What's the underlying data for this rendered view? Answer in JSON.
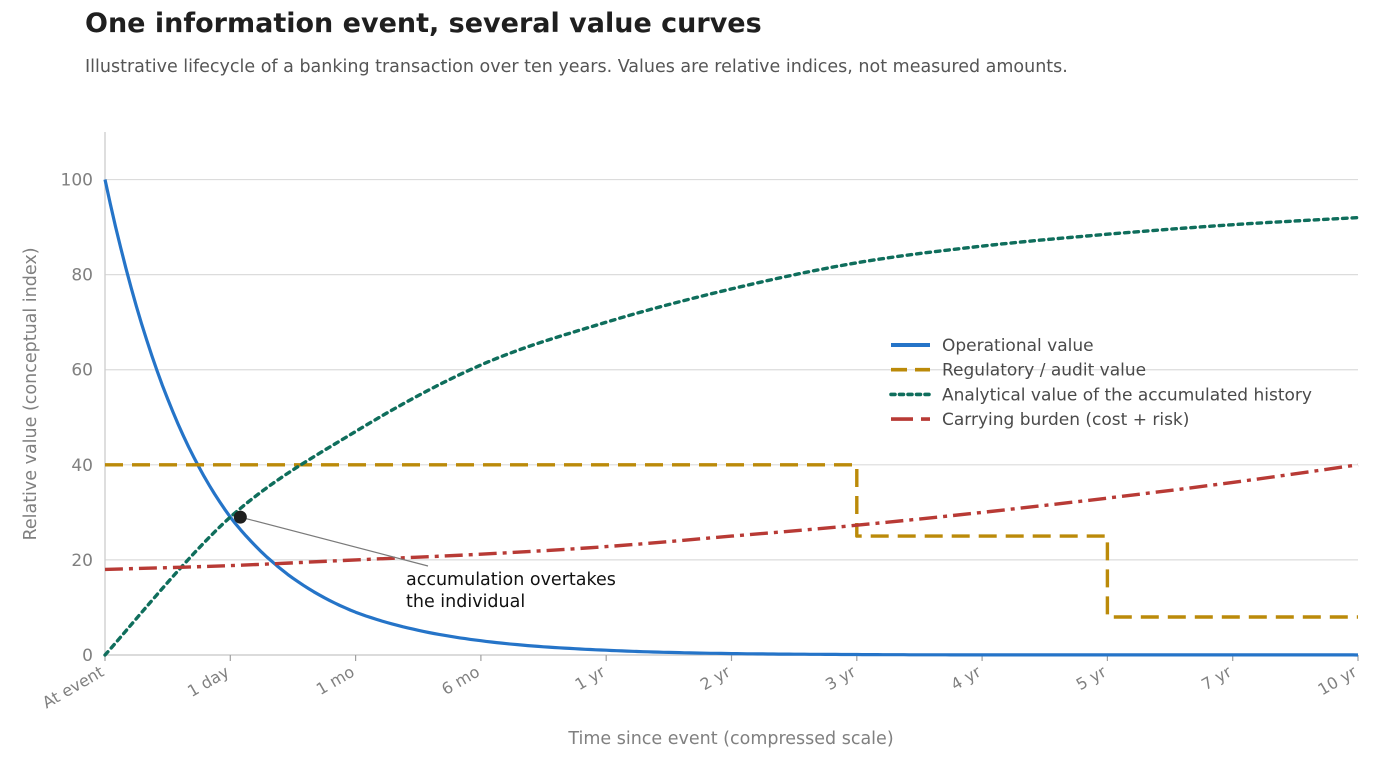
{
  "title": "One information event, several value curves",
  "subtitle": "Illustrative lifecycle of a banking transaction over ten years. Values are relative indices, not measured amounts.",
  "chart_data": {
    "type": "line",
    "title": "One information event, several value curves",
    "subtitle": "Illustrative lifecycle of a banking transaction over ten years. Values are relative indices, not measured amounts.",
    "xlabel": "Time since event (compressed scale)",
    "ylabel": "Relative value (conceptual index)",
    "x_scale": "compressed",
    "categories": [
      "At event",
      "1 day",
      "1 mo",
      "6 mo",
      "1 yr",
      "2 yr",
      "3 yr",
      "4 yr",
      "5 yr",
      "7 yr",
      "10 yr"
    ],
    "ylim": [
      0,
      110
    ],
    "yticks": [
      0,
      20,
      40,
      60,
      80,
      100
    ],
    "grid": "horizontal",
    "legend_position": "center-right",
    "series": [
      {
        "name": "Operational value",
        "color": "#2574c8",
        "style": "solid",
        "values": [
          100,
          29,
          9,
          3,
          1,
          0.3,
          0.1,
          0,
          0,
          0,
          0
        ]
      },
      {
        "name": "Regulatory / audit value",
        "color": "#bb8a09",
        "style": "dashed",
        "values": [
          40,
          40,
          40,
          40,
          40,
          40,
          25,
          25,
          8,
          8,
          8
        ],
        "step_points": [
          [
            0,
            40
          ],
          [
            6,
            40
          ],
          [
            6,
            25
          ],
          [
            8,
            25
          ],
          [
            8,
            8
          ],
          [
            10,
            8
          ]
        ]
      },
      {
        "name": "Analytical value of the accumulated history",
        "color": "#0f6e5c",
        "style": "dotted",
        "values": [
          0,
          29,
          47,
          61,
          70,
          77,
          82.5,
          86,
          88.5,
          90.5,
          92
        ]
      },
      {
        "name": "Carrying burden (cost + risk)",
        "color": "#b83a35",
        "style": "dash-dot",
        "values": [
          18,
          18.8,
          20,
          21.2,
          22.8,
          25,
          27.3,
          30,
          33,
          36.3,
          40
        ]
      }
    ],
    "annotations": [
      {
        "text_line1": "accumulation overtakes",
        "text_line2": "the individual",
        "point": [
          1.08,
          29
        ]
      }
    ]
  }
}
